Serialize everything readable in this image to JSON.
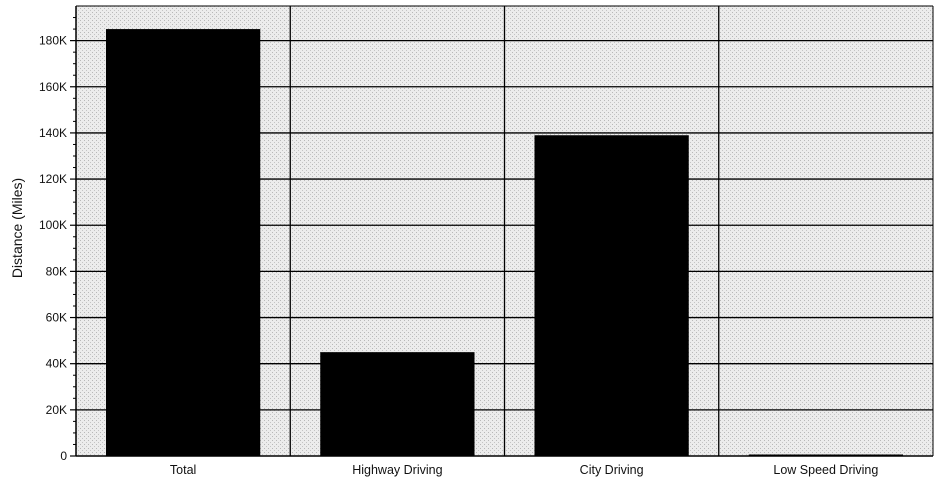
{
  "chart_data": {
    "type": "bar",
    "title": "",
    "xlabel": "",
    "ylabel": "Distance (Miles)",
    "categories": [
      "Total",
      "Highway Driving",
      "City Driving",
      "Low Speed Driving"
    ],
    "values": [
      185000,
      45000,
      139000,
      500
    ],
    "ylim": [
      0,
      195000
    ],
    "yticks": [
      0,
      20000,
      40000,
      60000,
      80000,
      100000,
      120000,
      140000,
      160000,
      180000
    ],
    "ytick_labels": [
      "0",
      "20K",
      "40K",
      "60K",
      "80K",
      "100K",
      "120K",
      "140K",
      "160K",
      "180K"
    ],
    "grid": true,
    "legend": "none",
    "colors": {
      "bar": "#000000",
      "background": "#e9e9e9",
      "grid": "#000000"
    }
  }
}
